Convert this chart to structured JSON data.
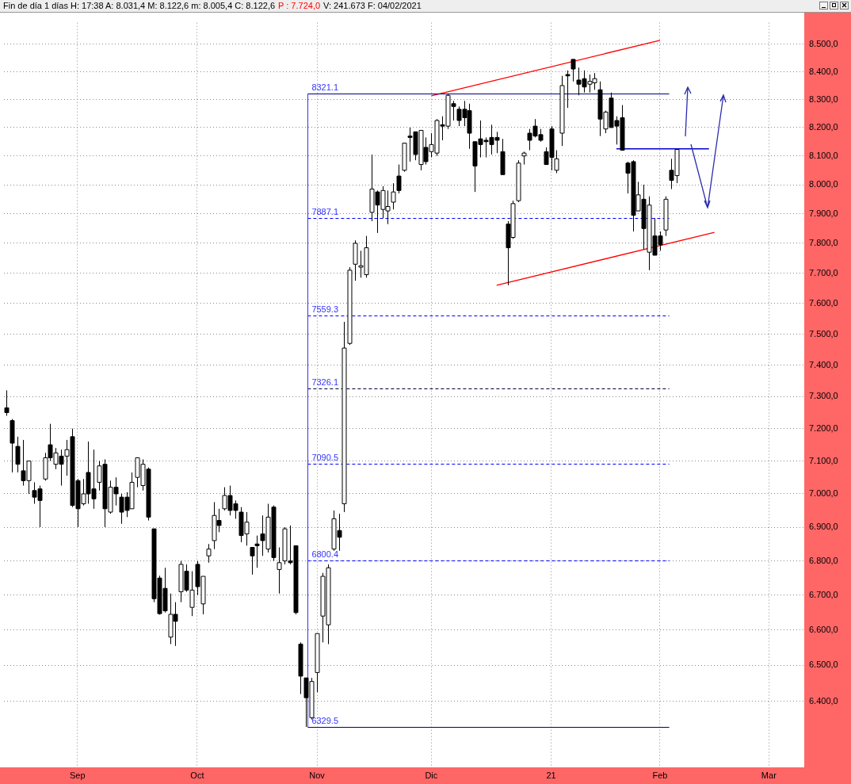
{
  "chart_data": {
    "type": "candlestick",
    "title": "Fin de día 1 días H: 17:38 A: 8.031,4 M: 8.122,6 m: 8.005,4 C: 8.122,6",
    "subtitle": "P : 7.724,0",
    "annotations": [
      "V: 241.673 F: 04/02/2021"
    ],
    "colors": [
      "#000000",
      "#000000",
      "#000000",
      "#000000",
      "#ffffff",
      "#000000",
      "#000000",
      "#ffffff",
      "#000000",
      "#ffffff",
      "#000000",
      "#ffffff",
      "#000000",
      "#000000",
      "#ffffff",
      "#000000",
      "#000000",
      "#ffffff",
      "#000000",
      "#ffffff",
      "#000000",
      "#000000",
      "#000000",
      "#ffffff",
      "#ffffff",
      "#ffffff",
      "#000000",
      "#000000",
      "#000000",
      "#000000",
      "#ffffff",
      "#000000",
      "#ffffff",
      "#000000",
      "#ffffff",
      "#000000",
      "#ffffff",
      "#ffffff",
      "#ffffff",
      "#000000",
      "#ffffff",
      "#000000",
      "#000000",
      "#000000",
      "#ffffff",
      "#000000",
      "#000000",
      "#000000",
      "#ffffff",
      "#000000",
      "#ffffff",
      "#ffffff",
      "#000000",
      "#000000",
      "#000000",
      "#000000",
      "#ffffff",
      "#ffffff",
      "#ffffff",
      "#ffffff",
      "#ffffff",
      "#000000",
      "#ffffff",
      "#ffffff",
      "#ffffff",
      "#ffffff",
      "#ffffff",
      "#ffffff",
      "#000000",
      "#ffffff",
      "#ffffff",
      "#ffffff",
      "#000000",
      "#ffffff",
      "#000000",
      "#000000",
      "#ffffff",
      "#000000",
      "#ffffff",
      "#ffffff",
      "#000000",
      "#ffffff",
      "#000000",
      "#000000",
      "#000000",
      "#000000",
      "#000000",
      "#000000",
      "#000000",
      "#000000",
      "#000000",
      "#000000",
      "#000000",
      "#ffffff",
      "#ffffff",
      "#ffffff",
      "#000000",
      "#000000",
      "#000000",
      "#000000",
      "#000000",
      "#ffffff",
      "#ffffff",
      "#000000",
      "#000000",
      "#000000",
      "#000000",
      "#ffffff",
      "#ffffff",
      "#000000",
      "#ffffff",
      "#000000",
      "#000000",
      "#000000",
      "#000000",
      "#000000",
      "#ffffff",
      "#000000",
      "#ffffff",
      "#000000",
      "#000000",
      "#ffffff",
      "#000000",
      "#ffffff",
      null,
      null,
      null,
      null,
      null,
      null,
      null,
      null,
      null,
      null,
      null,
      null,
      null,
      null,
      null,
      null,
      null,
      null,
      null,
      null,
      null,
      null,
      null
    ],
    "log": true,
    "grid": true,
    "legend": false,
    "categories": [
      null,
      null,
      null,
      null,
      null,
      null,
      null,
      null,
      null,
      null,
      null,
      null,
      null,
      "Sep",
      null,
      null,
      null,
      null,
      null,
      null,
      null,
      null,
      null,
      null,
      null,
      null,
      null,
      null,
      null,
      null,
      null,
      null,
      null,
      null,
      null,
      "Oct",
      null,
      null,
      null,
      null,
      null,
      null,
      null,
      null,
      null,
      null,
      null,
      null,
      null,
      null,
      null,
      null,
      null,
      null,
      null,
      null,
      null,
      "Nov",
      null,
      null,
      null,
      null,
      null,
      null,
      null,
      null,
      null,
      null,
      null,
      null,
      null,
      null,
      null,
      null,
      null,
      null,
      null,
      null,
      "Dic",
      null,
      null,
      null,
      null,
      null,
      null,
      null,
      null,
      null,
      null,
      null,
      null,
      null,
      null,
      null,
      null,
      null,
      null,
      null,
      null,
      null,
      "21",
      null,
      null,
      null,
      null,
      null,
      null,
      null,
      null,
      null,
      null,
      null,
      null,
      null,
      null,
      null,
      null,
      null,
      null,
      null,
      "Feb",
      null,
      null,
      null,
      null,
      null,
      null,
      null,
      null,
      null,
      null,
      null,
      null,
      null,
      null,
      null,
      null,
      null,
      null,
      null,
      "Mar",
      null,
      null,
      null,
      null,
      null,
      null
    ],
    "ohlc": [
      [
        7265,
        7320,
        7240,
        7250
      ],
      [
        7225,
        7230,
        7065,
        7155
      ],
      [
        7145,
        7175,
        7065,
        7090
      ],
      [
        7070,
        7165,
        7025,
        7040
      ],
      [
        7040,
        7100,
        7000,
        7100
      ],
      [
        7010,
        7035,
        6970,
        6990
      ],
      [
        7015,
        7025,
        6900,
        6980
      ],
      [
        7045,
        7125,
        7040,
        7110
      ],
      [
        7150,
        7215,
        7100,
        7110
      ],
      [
        7090,
        7140,
        7075,
        7125
      ],
      [
        7115,
        7135,
        7025,
        7090
      ],
      [
        7115,
        7165,
        7055,
        7135
      ],
      [
        7175,
        7200,
        6960,
        6965
      ],
      [
        7040,
        7045,
        6900,
        6955
      ],
      [
        6970,
        7045,
        6965,
        7000
      ],
      [
        7065,
        7160,
        6970,
        7000
      ],
      [
        7015,
        7135,
        6955,
        6985
      ],
      [
        7035,
        7100,
        7010,
        7085
      ],
      [
        7090,
        7105,
        6900,
        6955
      ],
      [
        6945,
        7040,
        6940,
        7020
      ],
      [
        7020,
        7050,
        6965,
        7000
      ],
      [
        6990,
        7000,
        6910,
        6945
      ],
      [
        6990,
        7005,
        6930,
        6950
      ],
      [
        6955,
        7065,
        6955,
        7035
      ],
      [
        7050,
        7110,
        7020,
        7110
      ],
      [
        7025,
        7105,
        7010,
        7090
      ],
      [
        7075,
        7080,
        6920,
        6930
      ],
      [
        6895,
        6895,
        6680,
        6690
      ],
      [
        6750,
        6757,
        6644,
        6647
      ],
      [
        6720,
        6780,
        6650,
        6655
      ],
      [
        6580,
        6705,
        6560,
        6645
      ],
      [
        6645,
        6680,
        6555,
        6625
      ],
      [
        6710,
        6800,
        6680,
        6790
      ],
      [
        6770,
        6790,
        6710,
        6715
      ],
      [
        6665,
        6770,
        6640,
        6715
      ],
      [
        6790,
        6800,
        6700,
        6725
      ],
      [
        6675,
        6755,
        6645,
        6755
      ],
      [
        6815,
        6850,
        6795,
        6835
      ],
      [
        6860,
        6975,
        6835,
        6935
      ],
      [
        6920,
        6955,
        6885,
        6905
      ],
      [
        6955,
        7020,
        6950,
        6995
      ],
      [
        6995,
        7025,
        6935,
        6950
      ],
      [
        6970,
        6980,
        6925,
        6950
      ],
      [
        6945,
        6960,
        6855,
        6875
      ],
      [
        6880,
        6945,
        6845,
        6915
      ],
      [
        6840,
        6840,
        6760,
        6815
      ],
      [
        6850,
        6875,
        6780,
        6845
      ],
      [
        6880,
        6935,
        6815,
        6860
      ],
      [
        6835,
        6970,
        6825,
        6930
      ],
      [
        6960,
        6965,
        6800,
        6810
      ],
      [
        6775,
        6840,
        6705,
        6795
      ],
      [
        6800,
        6900,
        6790,
        6895
      ],
      [
        6800,
        6905,
        6790,
        6795
      ],
      [
        6845,
        6845,
        6645,
        6650
      ],
      [
        6560,
        6565,
        6420,
        6470
      ],
      [
        6465,
        6465,
        6329.5,
        6410
      ],
      [
        6355,
        6465,
        6350,
        6455
      ],
      [
        6480,
        6590,
        6425,
        6590
      ],
      [
        6640,
        6765,
        6565,
        6755
      ],
      [
        6615,
        6790,
        6560,
        6780
      ],
      [
        6835,
        6950,
        6830,
        6925
      ],
      [
        6890,
        6940,
        6830,
        6870
      ],
      [
        6970,
        7540,
        6945,
        7455
      ],
      [
        7470,
        7720,
        7465,
        7710
      ],
      [
        7730,
        7810,
        7675,
        7800
      ],
      [
        7720,
        7775,
        7685,
        7725
      ],
      [
        7695,
        7825,
        7685,
        7785
      ],
      [
        7905,
        8105,
        7875,
        7985
      ],
      [
        7975,
        7980,
        7835,
        7930
      ],
      [
        7915,
        7995,
        7885,
        7980
      ],
      [
        7910,
        7980,
        7865,
        7925
      ],
      [
        7940,
        8005,
        7915,
        7975
      ],
      [
        8030,
        8070,
        7970,
        7980
      ],
      [
        8050,
        8145,
        8045,
        8145
      ],
      [
        8170,
        8200,
        8080,
        8165
      ],
      [
        8185,
        8185,
        8085,
        8105
      ],
      [
        8070,
        8190,
        8050,
        8190
      ],
      [
        8130,
        8165,
        8070,
        8080
      ],
      [
        8115,
        8180,
        8095,
        8140
      ],
      [
        8110,
        8230,
        8100,
        8225
      ],
      [
        8210,
        8240,
        8155,
        8205
      ],
      [
        8205,
        8321.1,
        8195,
        8315
      ],
      [
        8285,
        8295,
        8225,
        8275
      ],
      [
        8265,
        8275,
        8205,
        8225
      ],
      [
        8265,
        8295,
        8205,
        8235
      ],
      [
        8260,
        8285,
        8125,
        8180
      ],
      [
        8150,
        8150,
        7975,
        8065
      ],
      [
        8160,
        8225,
        8095,
        8140
      ],
      [
        8155,
        8165,
        8095,
        8150
      ],
      [
        8165,
        8210,
        8105,
        8140
      ],
      [
        8165,
        8185,
        8110,
        8155
      ],
      [
        8115,
        8160,
        8035,
        8035
      ],
      [
        7865,
        7875,
        7660,
        7785
      ],
      [
        7820,
        7945,
        7815,
        7935
      ],
      [
        7945,
        8085,
        7940,
        8075
      ],
      [
        8100,
        8115,
        8070,
        8110
      ],
      [
        8180,
        8195,
        8120,
        8155
      ],
      [
        8205,
        8230,
        8165,
        8170
      ],
      [
        8175,
        8195,
        8150,
        8155
      ],
      [
        8115,
        8130,
        8070,
        8070
      ],
      [
        8195,
        8205,
        8050,
        8095
      ],
      [
        8050,
        8120,
        8040,
        8090
      ],
      [
        8180,
        8385,
        8135,
        8350
      ],
      [
        8390,
        8405,
        8270,
        8385
      ],
      [
        8445,
        8445,
        8365,
        8410
      ],
      [
        8370,
        8415,
        8315,
        8355
      ],
      [
        8375,
        8405,
        8325,
        8345
      ],
      [
        8355,
        8390,
        8325,
        8365
      ],
      [
        8360,
        8395,
        8335,
        8375
      ],
      [
        8335,
        8365,
        8170,
        8230
      ],
      [
        8195,
        8260,
        8180,
        8255
      ],
      [
        8305,
        8325,
        8200,
        8200
      ],
      [
        8225,
        8240,
        8140,
        8205
      ],
      [
        8235,
        8280,
        8120,
        8120
      ],
      [
        8075,
        8080,
        7970,
        8040
      ],
      [
        8080,
        8085,
        7840,
        7895
      ],
      [
        7910,
        8010,
        7910,
        7965
      ],
      [
        7950,
        8000,
        7780,
        7850
      ],
      [
        7770,
        7960,
        7710,
        7930
      ],
      [
        7825,
        7885,
        7760,
        7760
      ],
      [
        7825,
        7840,
        7775,
        7795
      ],
      [
        7845,
        7960,
        7825,
        7950
      ],
      [
        8050,
        8090,
        7985,
        8015
      ],
      [
        8031.4,
        8122.6,
        8005.4,
        8122.6
      ],
      null,
      null,
      null,
      null,
      null,
      null,
      null,
      null,
      null,
      null,
      null,
      null,
      null,
      null,
      null,
      null,
      null,
      null,
      null,
      null,
      null,
      null,
      null
    ],
    "series": [
      {
        "type": "line",
        "color": "#ff0000",
        "values": [
          null,
          null,
          null,
          null,
          null,
          null,
          null,
          null,
          null,
          null,
          null,
          null,
          null,
          null,
          null,
          null,
          null,
          null,
          null,
          null,
          null,
          null,
          null,
          null,
          null,
          null,
          null,
          null,
          null,
          null,
          null,
          null,
          null,
          null,
          null,
          null,
          null,
          null,
          null,
          null,
          null,
          null,
          null,
          null,
          null,
          null,
          null,
          null,
          null,
          null,
          null,
          null,
          null,
          null,
          null,
          null,
          null,
          null,
          null,
          null,
          null,
          null,
          null,
          null,
          null,
          null,
          null,
          null,
          null,
          null,
          null,
          null,
          null,
          null,
          null,
          null,
          null,
          null,
          8313,
          null,
          null,
          null,
          null,
          null,
          null,
          null,
          null,
          null,
          null,
          null,
          null,
          null,
          null,
          null,
          null,
          null,
          null,
          null,
          null,
          null,
          null,
          null,
          null,
          null,
          null,
          null,
          null,
          null,
          null,
          null,
          null,
          null,
          null,
          null,
          null,
          null,
          null,
          null,
          null,
          null,
          8515,
          null,
          null,
          null,
          null,
          null,
          null,
          null,
          null,
          null,
          null,
          null,
          null,
          null,
          null,
          null,
          null,
          null,
          null,
          null,
          null,
          null,
          null,
          null,
          null,
          null,
          null
        ]
      },
      {
        "type": "line",
        "color": "#ff0000",
        "values": [
          null,
          null,
          null,
          null,
          null,
          null,
          null,
          null,
          null,
          null,
          null,
          null,
          null,
          null,
          null,
          null,
          null,
          null,
          null,
          null,
          null,
          null,
          null,
          null,
          null,
          null,
          null,
          null,
          null,
          null,
          null,
          null,
          null,
          null,
          null,
          null,
          null,
          null,
          null,
          null,
          null,
          null,
          null,
          null,
          null,
          null,
          null,
          null,
          null,
          null,
          null,
          null,
          null,
          null,
          null,
          null,
          null,
          null,
          null,
          null,
          null,
          null,
          null,
          null,
          null,
          null,
          null,
          null,
          null,
          null,
          null,
          null,
          null,
          null,
          null,
          null,
          null,
          null,
          null,
          null,
          null,
          null,
          null,
          null,
          null,
          null,
          null,
          null,
          null,
          null,
          7660,
          null,
          null,
          null,
          null,
          null,
          null,
          null,
          null,
          null,
          null,
          null,
          null,
          null,
          null,
          null,
          null,
          null,
          null,
          null,
          null,
          null,
          null,
          null,
          null,
          null,
          null,
          null,
          null,
          null,
          null,
          null,
          null,
          null,
          null,
          null,
          null,
          null,
          null,
          null,
          7837,
          null,
          null,
          null,
          null,
          null,
          null,
          null,
          null,
          null,
          null,
          null,
          null,
          null,
          null,
          null,
          null
        ]
      },
      {
        "type": "line",
        "color": "#0000cc",
        "values": [
          null,
          null,
          null,
          null,
          null,
          null,
          null,
          null,
          null,
          null,
          null,
          null,
          null,
          null,
          null,
          null,
          null,
          null,
          null,
          null,
          null,
          null,
          null,
          null,
          null,
          null,
          null,
          null,
          null,
          null,
          null,
          null,
          null,
          null,
          null,
          null,
          null,
          null,
          null,
          null,
          null,
          null,
          null,
          null,
          null,
          null,
          null,
          null,
          null,
          null,
          null,
          null,
          null,
          null,
          null,
          null,
          null,
          null,
          null,
          null,
          null,
          null,
          null,
          null,
          null,
          null,
          null,
          null,
          null,
          null,
          null,
          null,
          null,
          null,
          null,
          null,
          null,
          null,
          null,
          null,
          null,
          null,
          null,
          null,
          null,
          null,
          null,
          null,
          null,
          null,
          null,
          null,
          null,
          null,
          null,
          null,
          null,
          null,
          null,
          null,
          null,
          null,
          null,
          null,
          null,
          null,
          null,
          null,
          null,
          null,
          null,
          null,
          8125,
          null,
          null,
          null,
          null,
          null,
          null,
          null,
          null,
          null,
          null,
          null,
          null,
          null,
          null,
          null,
          null,
          8125,
          null,
          null,
          null,
          null,
          null,
          null,
          null,
          null,
          null,
          null,
          null,
          null,
          null,
          null,
          null,
          null,
          null
        ]
      }
    ],
    "ref_lines": [
      {
        "axis": "y",
        "value": 8321.1,
        "label": "8321.1",
        "color": "#000080",
        "line_style": "solid"
      },
      {
        "axis": "y",
        "value": 7887.1,
        "label": "7887.1",
        "color": "#0000ff",
        "line_style": "dashed"
      },
      {
        "axis": "y",
        "value": 7559.3,
        "label": "7559.3",
        "color": "#0000ff",
        "line_style": "dashed"
      },
      {
        "axis": "y",
        "value": 7326.1,
        "label": "7326.1",
        "color": "#000033",
        "line_style": "dashed"
      },
      {
        "axis": "y",
        "value": 7090.5,
        "label": "7090.5",
        "color": "#0000ff",
        "line_style": "dashed"
      },
      {
        "axis": "y",
        "value": 6800.4,
        "label": "6800.4",
        "color": "#0000ff",
        "line_style": "dashed"
      },
      {
        "axis": "y",
        "value": 6329.5,
        "label": "6329.5",
        "color": "#000080",
        "line_style": "solid"
      }
    ],
    "ylim": [
      6220,
      8580
    ],
    "yticks": [
      {
        "value": 6400,
        "label": "6.400,0"
      },
      {
        "value": 6500,
        "label": "6.500,0"
      },
      {
        "value": 6600,
        "label": "6.600,0"
      },
      {
        "value": 6700,
        "label": "6.700,0"
      },
      {
        "value": 6800,
        "label": "6.800,0"
      },
      {
        "value": 6900,
        "label": "6.900,0"
      },
      {
        "value": 7000,
        "label": "7.000,0"
      },
      {
        "value": 7100,
        "label": "7.100,0"
      },
      {
        "value": 7200,
        "label": "7.200,0"
      },
      {
        "value": 7300,
        "label": "7.300,0"
      },
      {
        "value": 7400,
        "label": "7.400,0"
      },
      {
        "value": 7500,
        "label": "7.500,0"
      },
      {
        "value": 7600,
        "label": "7.600,0"
      },
      {
        "value": 7700,
        "label": "7.700,0"
      },
      {
        "value": 7800,
        "label": "7.800,0"
      },
      {
        "value": 7900,
        "label": "7.900,0"
      },
      {
        "value": 8000,
        "label": "8.000,0"
      },
      {
        "value": 8100,
        "label": "8.100,0"
      },
      {
        "value": 8200,
        "label": "8.200,0"
      },
      {
        "value": 8300,
        "label": "8.300,0"
      },
      {
        "value": 8400,
        "label": "8.400,0"
      },
      {
        "value": 8500,
        "label": "8.500,0"
      }
    ]
  }
}
